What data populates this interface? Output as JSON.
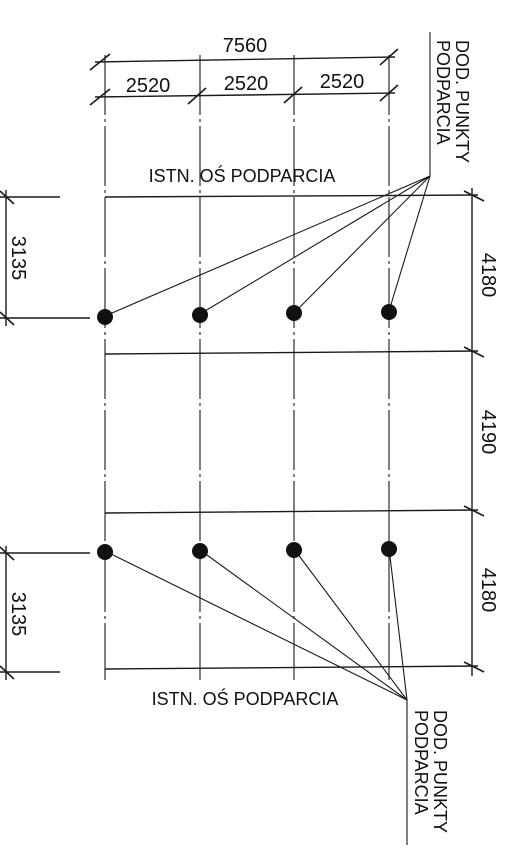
{
  "top_dims": {
    "total": "7560",
    "spans": [
      "2520",
      "2520",
      "2520"
    ]
  },
  "side_dims_right": [
    "4180",
    "4190",
    "4180"
  ],
  "side_dims_left": [
    "3135",
    "3135"
  ],
  "labels": {
    "support_axis_top": "ISTN. OŚ PODPARCIA",
    "support_axis_bottom": "ISTN. OŚ PODPARCIA",
    "extra_points_top_line1": "DOD. PUNKTY",
    "extra_points_top_line2": "PODPARCIA",
    "extra_points_bottom_line1": "DOD. PUNKTY",
    "extra_points_bottom_line2": "PODPARCIA"
  }
}
